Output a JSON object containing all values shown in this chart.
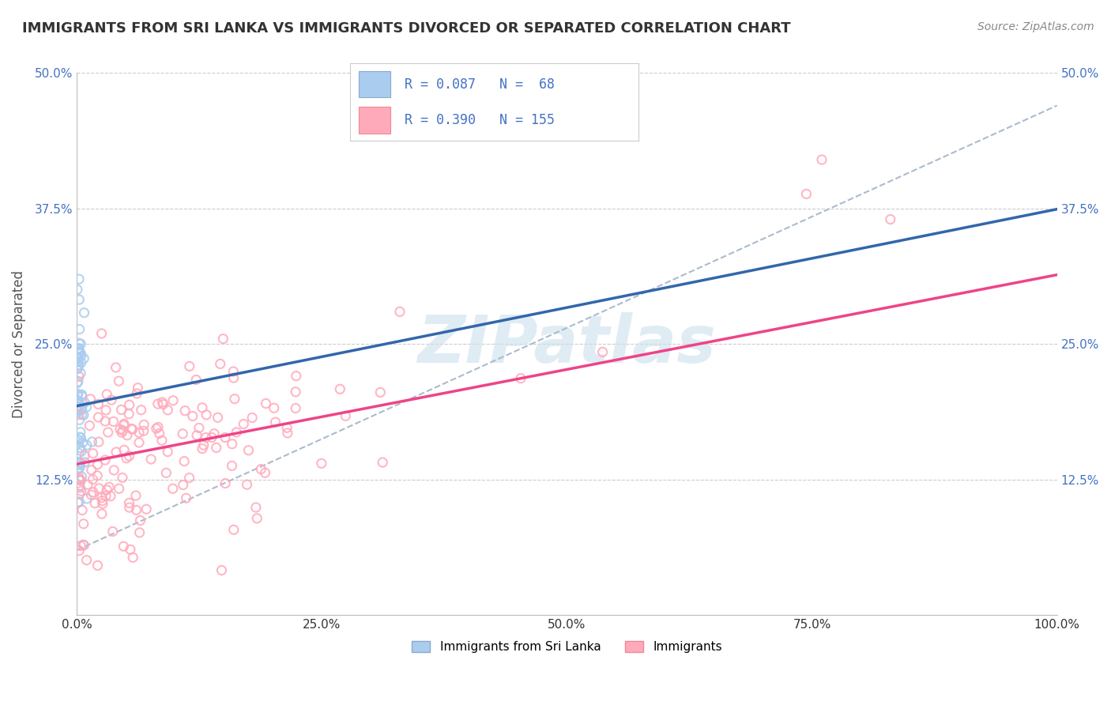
{
  "title": "IMMIGRANTS FROM SRI LANKA VS IMMIGRANTS DIVORCED OR SEPARATED CORRELATION CHART",
  "source": "Source: ZipAtlas.com",
  "ylabel": "Divorced or Separated",
  "legend_label_blue": "Immigrants from Sri Lanka",
  "legend_label_pink": "Immigrants",
  "R_blue": 0.087,
  "N_blue": 68,
  "R_pink": 0.39,
  "N_pink": 155,
  "xlim": [
    0,
    1.0
  ],
  "ylim": [
    0,
    0.5
  ],
  "blue_color": "#aaccee",
  "pink_color": "#ffaabb",
  "blue_edge_color": "#88aacc",
  "pink_edge_color": "#ee8899",
  "blue_line_color": "#3366aa",
  "pink_line_color": "#ee4488",
  "gray_line_color": "#aabbcc",
  "watermark_color": "#cce0ee",
  "background_color": "#ffffff",
  "grid_color": "#cccccc",
  "tick_label_color": "#4472c4",
  "title_color": "#333333",
  "source_color": "#888888",
  "ylabel_color": "#555555"
}
